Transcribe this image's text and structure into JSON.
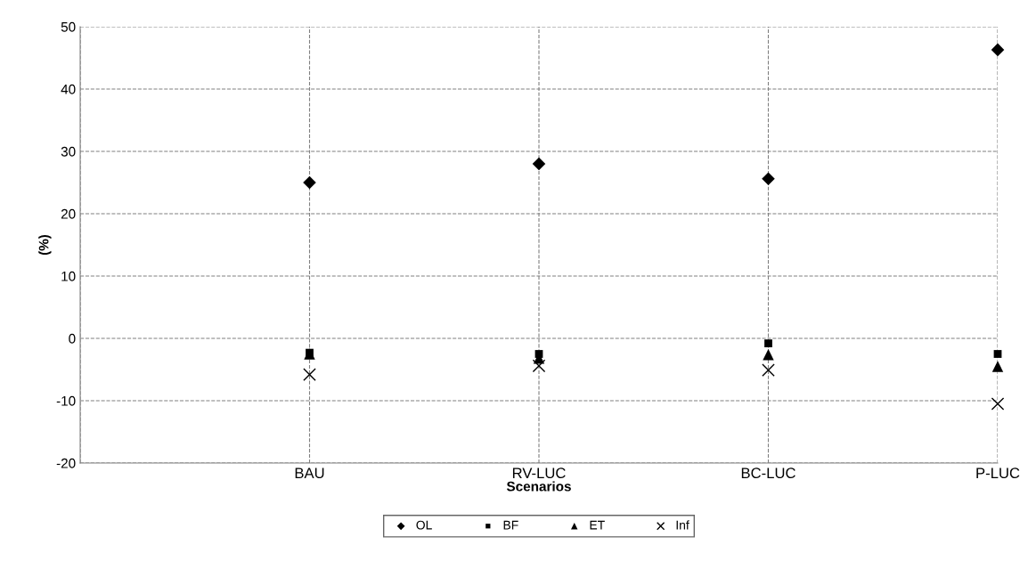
{
  "chart_data": {
    "type": "scatter",
    "xlabel": "Scenarios",
    "ylabel": "(%)",
    "categories": [
      null,
      "BAU",
      "RV-LUC",
      "BC-LUC",
      "P-LUC"
    ],
    "ylim": [
      -20,
      50
    ],
    "yticks": [
      -20,
      -10,
      0,
      10,
      20,
      30,
      40,
      50
    ],
    "grid": true,
    "legend": "bottom",
    "series": [
      {
        "name": "OL",
        "color": "#000000",
        "marker": "diamond",
        "values": [
          null,
          25.0,
          28.0,
          25.6,
          46.3
        ]
      },
      {
        "name": "BF",
        "color": "#000000",
        "marker": "square",
        "values": [
          null,
          -2.3,
          -2.5,
          -0.8,
          -2.5
        ]
      },
      {
        "name": "ET",
        "color": "#000000",
        "marker": "triangle",
        "values": [
          null,
          -2.5,
          -3.2,
          -2.6,
          -4.5
        ]
      },
      {
        "name": "Inf",
        "color": "#000000",
        "marker": "cross",
        "values": [
          null,
          -5.8,
          -4.4,
          -5.1,
          -10.5
        ]
      }
    ]
  }
}
